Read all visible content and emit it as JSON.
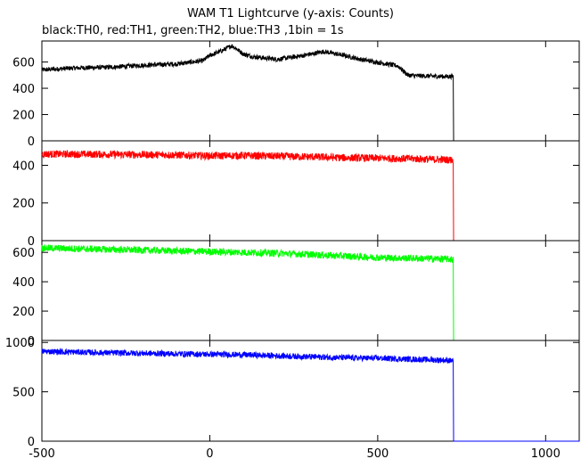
{
  "chart_data": {
    "type": "line",
    "title": "WAM T1 Lightcurve (y-axis: Counts)",
    "subtitle": "black:TH0, red:TH1, green:TH2, blue:TH3 ,1bin = 1s",
    "xlim": [
      -500,
      1100
    ],
    "x_ticks": [
      -500,
      0,
      500,
      1000
    ],
    "panels": [
      {
        "name": "TH0",
        "color": "#000000",
        "ylim": [
          0,
          760
        ],
        "y_ticks": [
          0,
          200,
          400,
          600
        ],
        "noise": 18,
        "dropout_x": 725,
        "points": [
          [
            -500,
            540
          ],
          [
            -400,
            555
          ],
          [
            -300,
            560
          ],
          [
            -200,
            575
          ],
          [
            -100,
            585
          ],
          [
            -20,
            610
          ],
          [
            0,
            650
          ],
          [
            40,
            690
          ],
          [
            65,
            725
          ],
          [
            80,
            700
          ],
          [
            100,
            660
          ],
          [
            130,
            640
          ],
          [
            200,
            620
          ],
          [
            280,
            650
          ],
          [
            340,
            680
          ],
          [
            400,
            650
          ],
          [
            450,
            620
          ],
          [
            560,
            570
          ],
          [
            590,
            500
          ],
          [
            620,
            495
          ],
          [
            700,
            490
          ],
          [
            725,
            490
          ],
          [
            726,
            0
          ],
          [
            1100,
            0
          ]
        ]
      },
      {
        "name": "TH1",
        "color": "#ff0000",
        "ylim": [
          0,
          530
        ],
        "y_ticks": [
          0,
          200,
          400
        ],
        "noise": 20,
        "dropout_x": 725,
        "points": [
          [
            -500,
            460
          ],
          [
            -300,
            458
          ],
          [
            -100,
            455
          ],
          [
            0,
            450
          ],
          [
            100,
            452
          ],
          [
            200,
            448
          ],
          [
            300,
            445
          ],
          [
            400,
            440
          ],
          [
            500,
            438
          ],
          [
            600,
            435
          ],
          [
            700,
            430
          ],
          [
            725,
            428
          ],
          [
            726,
            0
          ],
          [
            1100,
            0
          ]
        ]
      },
      {
        "name": "TH2",
        "color": "#00ff00",
        "ylim": [
          0,
          680
        ],
        "y_ticks": [
          0,
          200,
          400,
          600
        ],
        "noise": 24,
        "dropout_x": 725,
        "points": [
          [
            -500,
            630
          ],
          [
            -300,
            620
          ],
          [
            -100,
            610
          ],
          [
            0,
            605
          ],
          [
            100,
            600
          ],
          [
            200,
            595
          ],
          [
            300,
            585
          ],
          [
            400,
            575
          ],
          [
            500,
            565
          ],
          [
            600,
            560
          ],
          [
            700,
            555
          ],
          [
            725,
            552
          ],
          [
            726,
            0
          ],
          [
            1100,
            0
          ]
        ]
      },
      {
        "name": "TH3",
        "color": "#0000ff",
        "ylim": [
          0,
          1020
        ],
        "y_ticks": [
          0,
          500,
          1000
        ],
        "noise": 30,
        "dropout_x": 725,
        "points": [
          [
            -500,
            910
          ],
          [
            -300,
            895
          ],
          [
            -100,
            885
          ],
          [
            0,
            880
          ],
          [
            100,
            875
          ],
          [
            200,
            865
          ],
          [
            300,
            855
          ],
          [
            400,
            845
          ],
          [
            500,
            840
          ],
          [
            600,
            830
          ],
          [
            700,
            820
          ],
          [
            725,
            815
          ],
          [
            726,
            0
          ],
          [
            1100,
            0
          ]
        ]
      }
    ]
  }
}
